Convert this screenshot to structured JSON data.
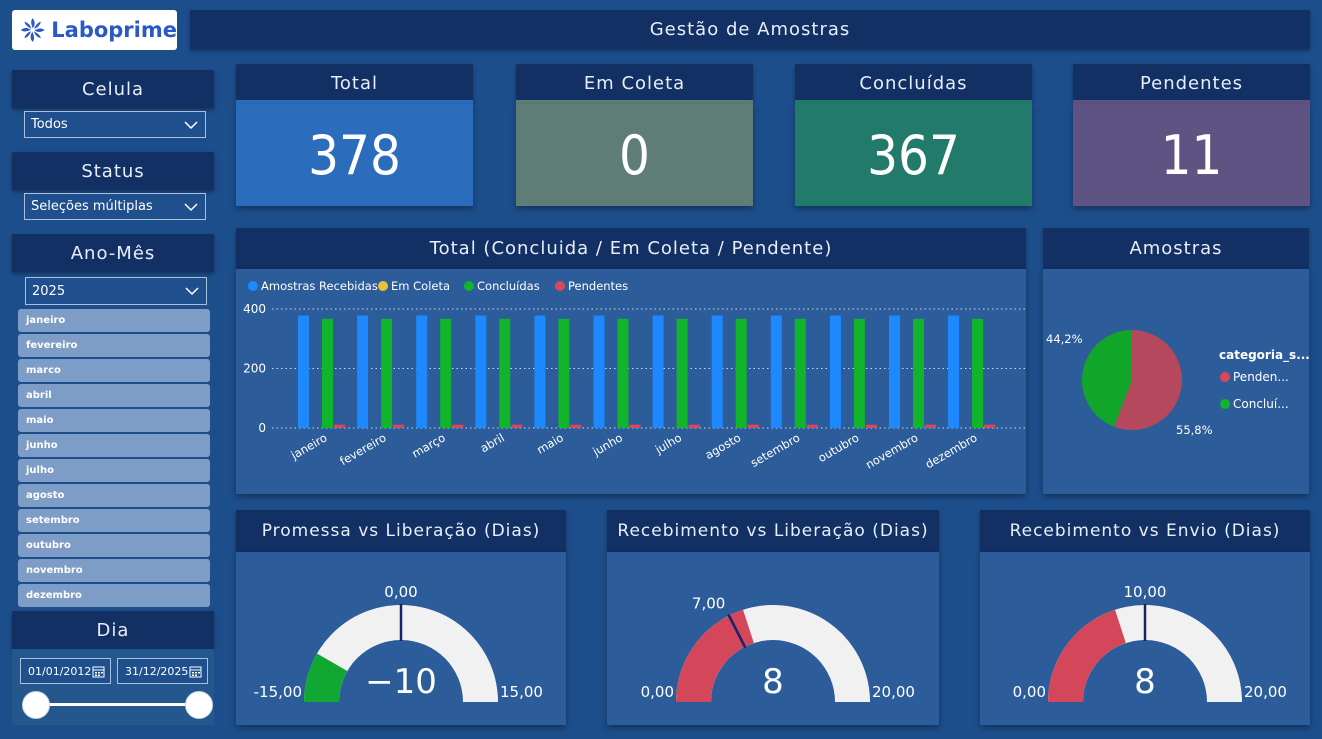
{
  "app": {
    "logo_text": "Laboprime",
    "title": "Gestão de Amostras"
  },
  "filters": {
    "celula": {
      "label": "Celula",
      "value": "Todos"
    },
    "status": {
      "label": "Status",
      "value": "Seleções múltiplas"
    },
    "ano_mes": {
      "label": "Ano-Mês",
      "value": "2025"
    },
    "months": [
      "janeiro",
      "fevereiro",
      "marco",
      "abril",
      "maio",
      "junho",
      "julho",
      "agosto",
      "setembro",
      "outubro",
      "novembro",
      "dezembro"
    ],
    "dia": {
      "label": "Dia",
      "start": "01/01/2012",
      "end": "31/12/2025"
    }
  },
  "kpis": [
    {
      "label": "Total",
      "value": "378",
      "color": "#2b6cbc"
    },
    {
      "label": "Em Coleta",
      "value": "0",
      "color": "#5f7d77"
    },
    {
      "label": "Concluídas",
      "value": "367",
      "color": "#217a6a"
    },
    {
      "label": "Pendentes",
      "value": "11",
      "color": "#5f5384"
    }
  ],
  "bar_chart": {
    "title": "Total (Concluida / Em Coleta / Pendente)"
  },
  "pie_chart": {
    "title": "Amostras"
  },
  "gauges": [
    {
      "title": "Promessa vs Liberação (Dias)",
      "value": -10,
      "value_label": "−10",
      "min": -15,
      "max": 15,
      "min_label": "-15,00",
      "max_label": "15,00",
      "target": 0,
      "target_label": "0,00",
      "fill_color": "#10a832"
    },
    {
      "title": "Recebimento vs Liberação (Dias)",
      "value": 8,
      "value_label": "8",
      "min": 0,
      "max": 20,
      "min_label": "0,00",
      "max_label": "20,00",
      "target": 7,
      "target_label": "7,00",
      "fill_color": "#d4475a"
    },
    {
      "title": "Recebimento vs Envio (Dias)",
      "value": 8,
      "value_label": "8",
      "min": 0,
      "max": 20,
      "min_label": "0,00",
      "max_label": "20,00",
      "target": 10,
      "target_label": "10,00",
      "fill_color": "#d4475a"
    }
  ],
  "colors": {
    "recebidas": "#1e88ff",
    "em_coleta": "#e7c13a",
    "concluidas": "#11b52b",
    "pendentes": "#d9485a",
    "gauge_bg": "#f2f1f1",
    "target_needle": "#15236b"
  },
  "chart_data": [
    {
      "type": "bar",
      "title": "Total (Concluida / Em Coleta / Pendente)",
      "categories": [
        "janeiro",
        "fevereiro",
        "março",
        "abril",
        "maio",
        "junho",
        "julho",
        "agosto",
        "setembro",
        "outubro",
        "novembro",
        "dezembro"
      ],
      "series": [
        {
          "name": "Amostras Recebidas",
          "values": [
            378,
            378,
            378,
            378,
            378,
            378,
            378,
            378,
            378,
            378,
            378,
            378
          ]
        },
        {
          "name": "Em Coleta",
          "values": [
            0,
            0,
            0,
            0,
            0,
            0,
            0,
            0,
            0,
            0,
            0,
            0
          ]
        },
        {
          "name": "Concluídas",
          "values": [
            367,
            367,
            367,
            367,
            367,
            367,
            367,
            367,
            367,
            367,
            367,
            367
          ]
        },
        {
          "name": "Pendentes",
          "values": [
            11,
            11,
            11,
            11,
            11,
            11,
            11,
            11,
            11,
            11,
            11,
            11
          ]
        }
      ],
      "yticks": [
        "0",
        "200",
        "400"
      ],
      "ylim": [
        0,
        400
      ],
      "grid": true,
      "legend": "top-left"
    },
    {
      "type": "pie",
      "title": "Amostras",
      "legend_title": "categoria_s...",
      "slices": [
        {
          "name": "Penden...",
          "value": 55.8,
          "label": "55,8%"
        },
        {
          "name": "Concluí...",
          "value": 44.2,
          "label": "44,2%"
        }
      ],
      "legend": "right"
    }
  ]
}
